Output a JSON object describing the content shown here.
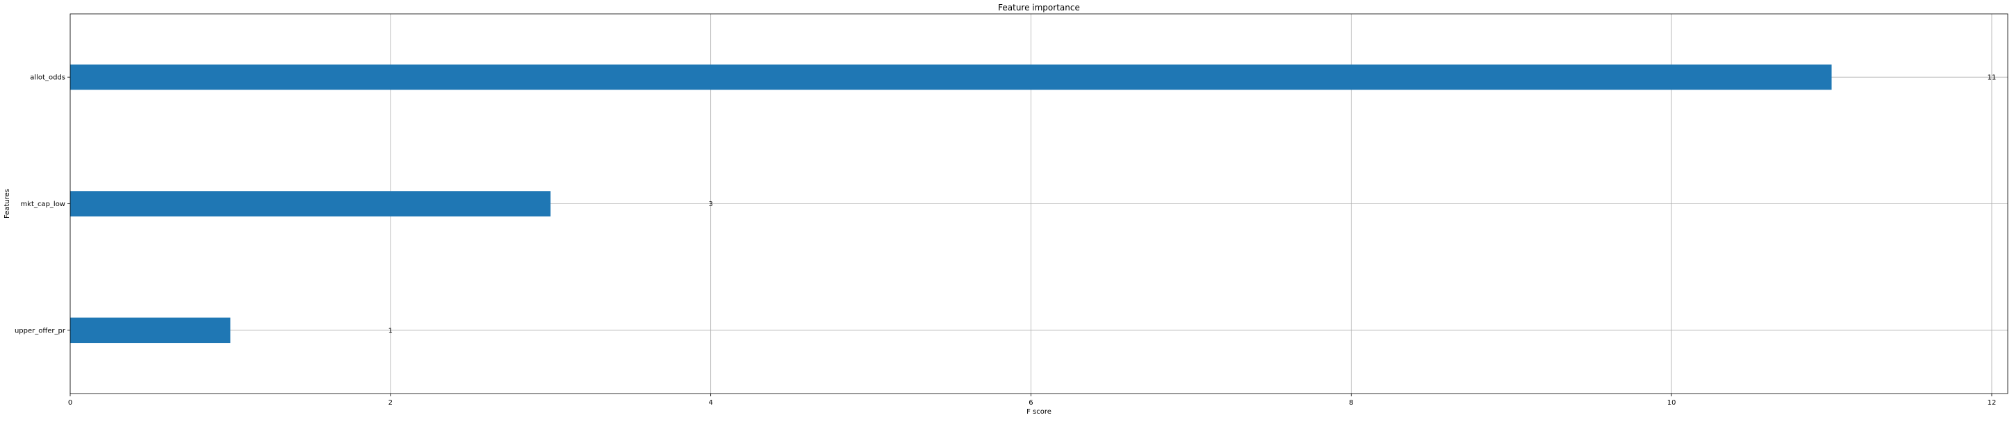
{
  "chart_data": {
    "type": "bar",
    "orientation": "horizontal",
    "title": "Feature importance",
    "xlabel": "F score",
    "ylabel": "Features",
    "categories": [
      "upper_offer_pr",
      "mkt_cap_low",
      "allot_odds"
    ],
    "values": [
      1,
      3,
      11
    ],
    "value_labels": [
      "1",
      "3",
      "11"
    ],
    "xlim": [
      0,
      12.1
    ],
    "xticks": [
      0,
      2,
      4,
      6,
      8,
      10,
      12
    ],
    "grid": true,
    "bar_color": "#1f77b4",
    "grid_color": "#b0b0b0"
  }
}
